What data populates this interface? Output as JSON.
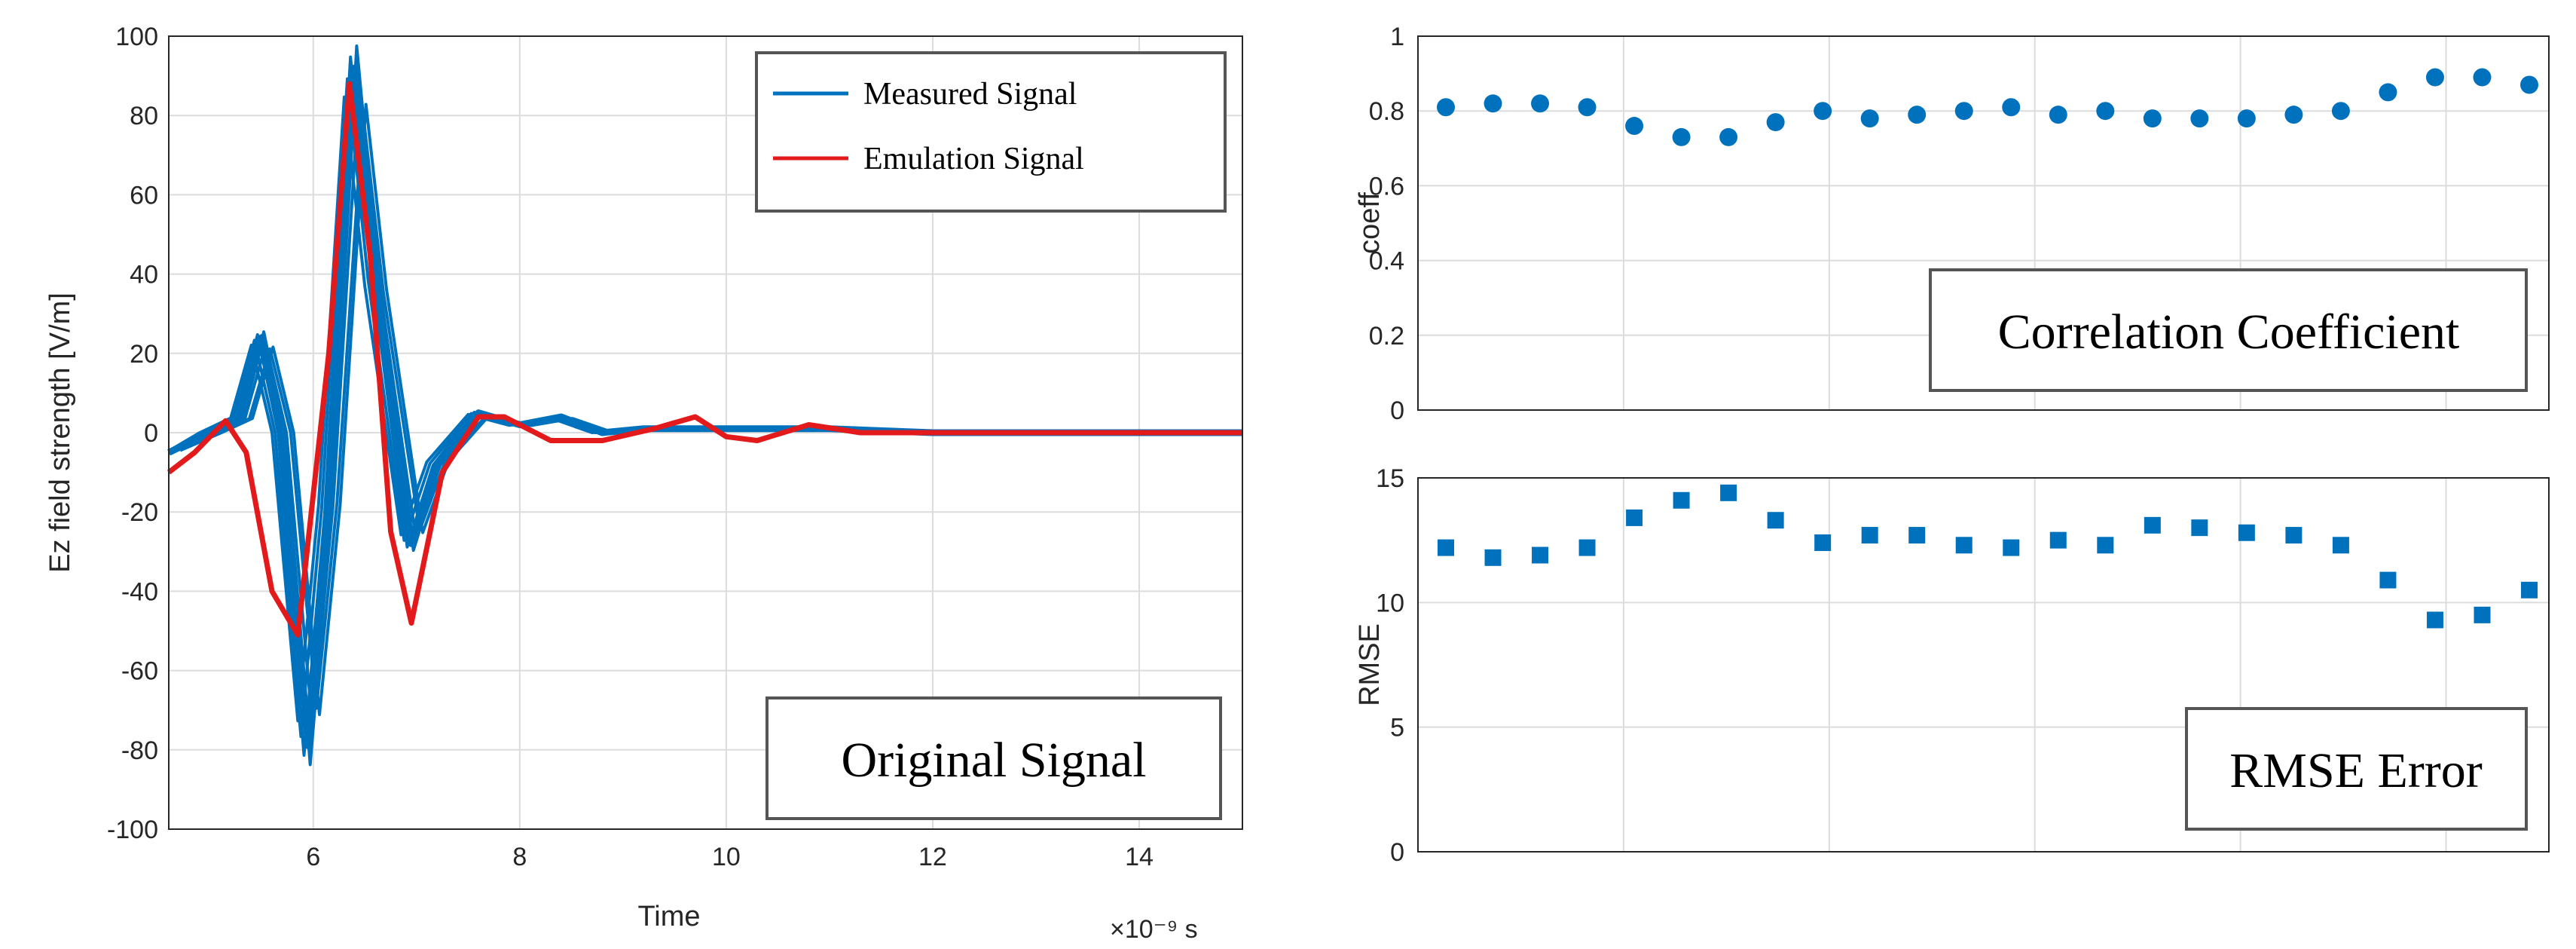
{
  "chart_data": [
    {
      "type": "line",
      "title": "",
      "xlabel": "Time",
      "ylabel": "Ez field strength [V/m]",
      "x_exponent": "×10⁻⁹ s",
      "xlim": [
        4.6,
        15
      ],
      "ylim": [
        -100,
        100
      ],
      "xticks": [
        6,
        8,
        10,
        12,
        14
      ],
      "yticks": [
        -100,
        -80,
        -60,
        -40,
        -20,
        0,
        20,
        40,
        60,
        80,
        100
      ],
      "grid": true,
      "legend_position": "top-right",
      "annotation": "Original Signal",
      "colors": {
        "measured": "#0072BD",
        "emulation": "#E31A1C"
      },
      "series": [
        {
          "name": "Measured Signal",
          "note": "multiple overlapping measured traces",
          "x": [
            4.6,
            5.0,
            5.3,
            5.5,
            5.7,
            5.95,
            6.15,
            6.4,
            6.6,
            6.95,
            7.2,
            7.6,
            8.0,
            8.4,
            8.8,
            9.2,
            10.0,
            11.0,
            12.0,
            13.0,
            15.0
          ],
          "y": [
            -5,
            0,
            4,
            24,
            0,
            -79,
            -20,
            92,
            40,
            -28,
            -8,
            5,
            2,
            4,
            0,
            1,
            1,
            1,
            0,
            0,
            0
          ]
        },
        {
          "name": "Emulation Signal",
          "x": [
            4.6,
            4.85,
            5.15,
            5.35,
            5.6,
            5.85,
            6.15,
            6.35,
            6.55,
            6.75,
            6.95,
            7.25,
            7.6,
            7.85,
            8.3,
            8.8,
            9.3,
            9.7,
            10.0,
            10.3,
            10.8,
            11.3,
            12.0,
            13.0,
            15.0
          ],
          "y": [
            -10,
            -5,
            3,
            -5,
            -40,
            -51,
            20,
            88,
            45,
            -25,
            -48,
            -10,
            4,
            4,
            -2,
            -2,
            1,
            4,
            -1,
            -2,
            2,
            0,
            0,
            0,
            0
          ]
        }
      ]
    },
    {
      "type": "scatter",
      "title": "",
      "xlabel": "",
      "ylabel": "coeff",
      "ylim": [
        0,
        1
      ],
      "yticks": [
        "0",
        "0.2",
        "0.4",
        "0.6",
        "0.8",
        "1"
      ],
      "grid": true,
      "annotation": "Correlation Coefficient",
      "marker": "circle",
      "color": "#0072BD",
      "series": [
        {
          "name": "coeff",
          "values": [
            0.81,
            0.82,
            0.82,
            0.81,
            0.76,
            0.73,
            0.73,
            0.77,
            0.8,
            0.78,
            0.79,
            0.8,
            0.81,
            0.79,
            0.8,
            0.78,
            0.78,
            0.78,
            0.79,
            0.8,
            0.85,
            0.89,
            0.89,
            0.87
          ]
        }
      ]
    },
    {
      "type": "scatter",
      "title": "",
      "xlabel": "",
      "ylabel": "RMSE",
      "ylim": [
        0,
        15
      ],
      "yticks": [
        "0",
        "5",
        "10",
        "15"
      ],
      "grid": true,
      "annotation": "RMSE Error",
      "marker": "square",
      "color": "#0072BD",
      "series": [
        {
          "name": "RMSE",
          "values": [
            12.2,
            11.8,
            11.9,
            12.2,
            13.4,
            14.1,
            14.4,
            13.3,
            12.4,
            12.7,
            12.7,
            12.3,
            12.2,
            12.5,
            12.3,
            13.1,
            13.0,
            12.8,
            12.7,
            12.3,
            10.9,
            9.3,
            9.5,
            10.5
          ]
        }
      ]
    }
  ]
}
